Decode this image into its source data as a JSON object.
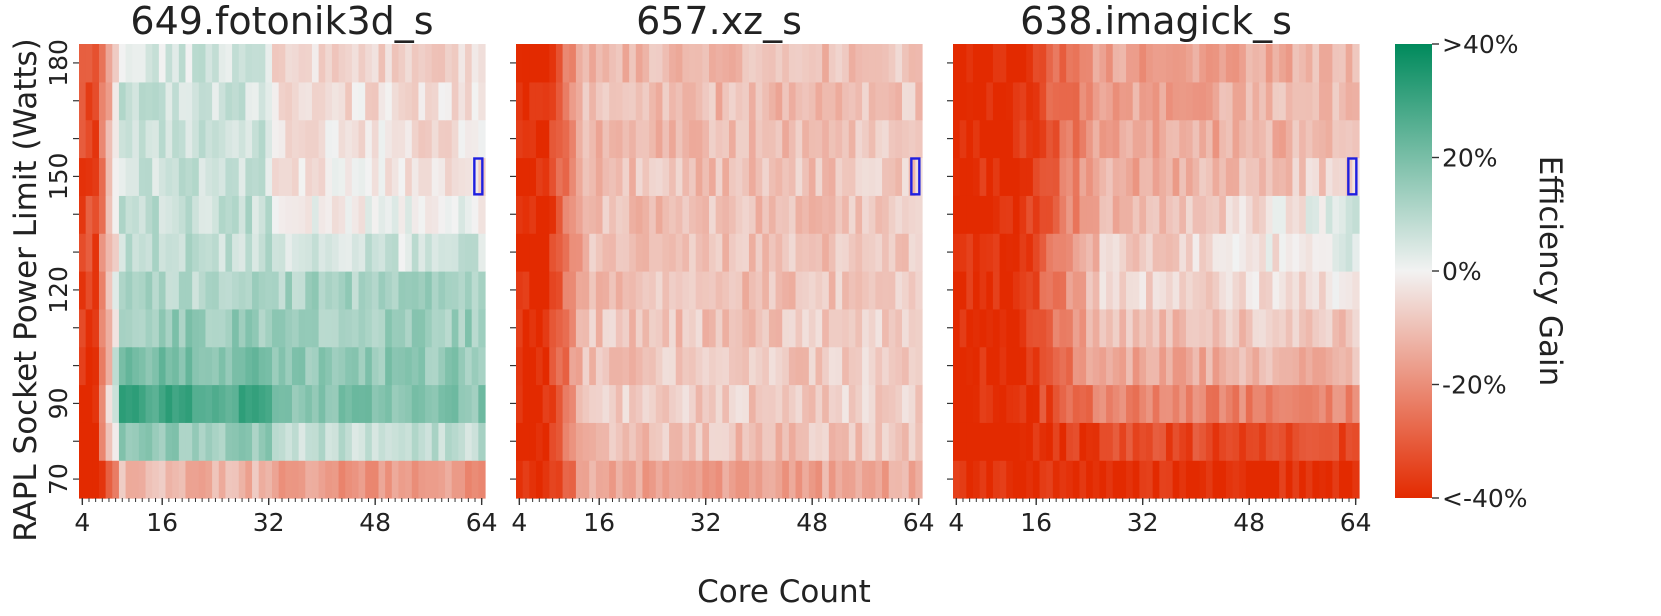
{
  "chart_data": {
    "type": "heatmap",
    "xlabel": "Core Count",
    "ylabel": "RAPL Socket Power Limit (Watts)",
    "x_ticks": [
      4,
      16,
      32,
      48,
      64
    ],
    "y_ticks": [
      70,
      90,
      120,
      150,
      180
    ],
    "x_range": [
      4,
      64
    ],
    "power_levels_watts": [
      70,
      80,
      90,
      100,
      110,
      120,
      130,
      140,
      150,
      160,
      170,
      180
    ],
    "colorbar": {
      "label": "Efficiency Gain",
      "range": [
        -40,
        40
      ],
      "ticks": [
        {
          "value": 40,
          "label": ">40%"
        },
        {
          "value": 20,
          "label": "20%"
        },
        {
          "value": 0,
          "label": "0%"
        },
        {
          "value": -20,
          "label": "-20%"
        },
        {
          "value": -40,
          "label": "<-40%"
        }
      ],
      "colors": {
        "low": "#e32a00",
        "mid": "#f2f2f2",
        "high": "#008a5c"
      }
    },
    "highlight": {
      "core_count": 64,
      "power_limit_watts": 150,
      "color": "#1f1fe0"
    },
    "panels": [
      {
        "title": "649.fotonik3d_s",
        "approx_gain_by_power": [
          {
            "power": 70,
            "low_cores": -40,
            "mid_cores": -12,
            "high_cores": -18
          },
          {
            "power": 80,
            "low_cores": -40,
            "mid_cores": 15,
            "high_cores": 8
          },
          {
            "power": 90,
            "low_cores": -40,
            "mid_cores": 28,
            "high_cores": 18
          },
          {
            "power": 100,
            "low_cores": -40,
            "mid_cores": 20,
            "high_cores": 16
          },
          {
            "power": 110,
            "low_cores": -38,
            "mid_cores": 15,
            "high_cores": 14
          },
          {
            "power": 120,
            "low_cores": -36,
            "mid_cores": 10,
            "high_cores": 12
          },
          {
            "power": 130,
            "low_cores": -34,
            "mid_cores": 8,
            "high_cores": 5
          },
          {
            "power": 140,
            "low_cores": -34,
            "mid_cores": 8,
            "high_cores": 0
          },
          {
            "power": 150,
            "low_cores": -34,
            "mid_cores": 6,
            "high_cores": -3
          },
          {
            "power": 160,
            "low_cores": -34,
            "mid_cores": 6,
            "high_cores": -4
          },
          {
            "power": 170,
            "low_cores": -34,
            "mid_cores": 6,
            "high_cores": -4
          },
          {
            "power": 180,
            "low_cores": -34,
            "mid_cores": 5,
            "high_cores": -6
          }
        ]
      },
      {
        "title": "657.xz_s",
        "approx_gain_by_power": [
          {
            "power": 70,
            "low_cores": -40,
            "mid_cores": -16,
            "high_cores": -14
          },
          {
            "power": 80,
            "low_cores": -40,
            "mid_cores": -10,
            "high_cores": -9
          },
          {
            "power": 90,
            "low_cores": -40,
            "mid_cores": -8,
            "high_cores": -6
          },
          {
            "power": 100,
            "low_cores": -40,
            "mid_cores": -9,
            "high_cores": -7
          },
          {
            "power": 110,
            "low_cores": -40,
            "mid_cores": -9,
            "high_cores": -7
          },
          {
            "power": 120,
            "low_cores": -40,
            "mid_cores": -10,
            "high_cores": -7
          },
          {
            "power": 130,
            "low_cores": -40,
            "mid_cores": -10,
            "high_cores": -8
          },
          {
            "power": 140,
            "low_cores": -40,
            "mid_cores": -10,
            "high_cores": -8
          },
          {
            "power": 150,
            "low_cores": -40,
            "mid_cores": -10,
            "high_cores": -8
          },
          {
            "power": 160,
            "low_cores": -40,
            "mid_cores": -11,
            "high_cores": -9
          },
          {
            "power": 170,
            "low_cores": -40,
            "mid_cores": -11,
            "high_cores": -9
          },
          {
            "power": 180,
            "low_cores": -40,
            "mid_cores": -11,
            "high_cores": -9
          }
        ]
      },
      {
        "title": "638.imagick_s",
        "approx_gain_by_power": [
          {
            "power": 70,
            "low_cores": -40,
            "mid_cores": -40,
            "high_cores": -40
          },
          {
            "power": 80,
            "low_cores": -40,
            "mid_cores": -34,
            "high_cores": -34
          },
          {
            "power": 90,
            "low_cores": -40,
            "mid_cores": -22,
            "high_cores": -22
          },
          {
            "power": 100,
            "low_cores": -40,
            "mid_cores": -14,
            "high_cores": -12
          },
          {
            "power": 110,
            "low_cores": -40,
            "mid_cores": -10,
            "high_cores": -8
          },
          {
            "power": 120,
            "low_cores": -40,
            "mid_cores": -6,
            "high_cores": -3
          },
          {
            "power": 130,
            "low_cores": -40,
            "mid_cores": -8,
            "high_cores": 2
          },
          {
            "power": 140,
            "low_cores": -40,
            "mid_cores": -12,
            "high_cores": 3
          },
          {
            "power": 150,
            "low_cores": -40,
            "mid_cores": -14,
            "high_cores": -6
          },
          {
            "power": 160,
            "low_cores": -40,
            "mid_cores": -16,
            "high_cores": -10
          },
          {
            "power": 170,
            "low_cores": -40,
            "mid_cores": -16,
            "high_cores": -10
          },
          {
            "power": 180,
            "low_cores": -40,
            "mid_cores": -16,
            "high_cores": -12
          }
        ]
      }
    ]
  }
}
